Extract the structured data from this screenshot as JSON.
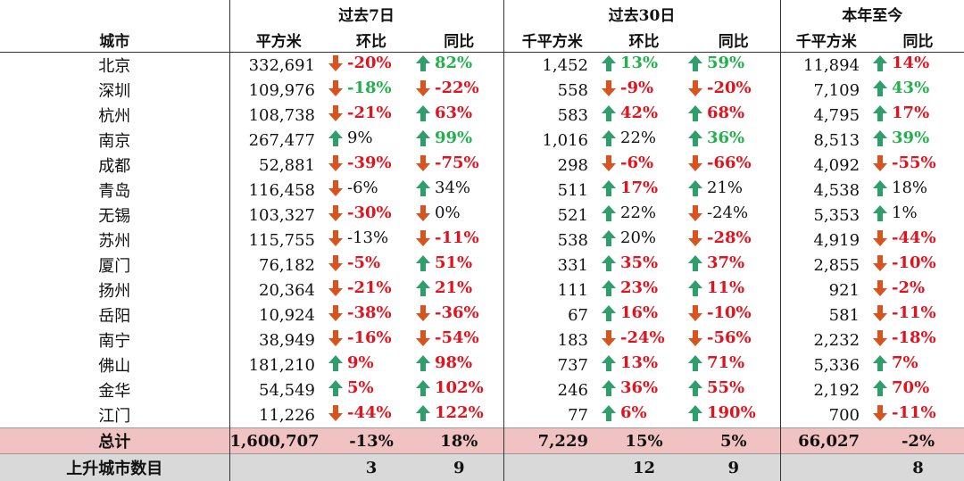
{
  "headers": {
    "group_past7": "过去7日",
    "group_past30": "过去30日",
    "group_ytd": "本年至今",
    "col_city": "城市",
    "col_p7_area": "平方米",
    "col_p7_mom": "环比",
    "col_p7_yoy": "同比",
    "col_p30_area": "千平方米",
    "col_p30_mom": "环比",
    "col_p30_yoy": "同比",
    "col_ytd_area": "千平方米",
    "col_ytd_yoy": "同比"
  },
  "colors": {
    "up": "#22b14c",
    "down": "#e0141e",
    "arrow_up": "#2e9e6b",
    "arrow_down": "#d9531e",
    "total_bg": "#f0c2c2",
    "rise_bg": "#d9d9d9"
  },
  "rows": [
    {
      "city": "北京",
      "p7": "332,691",
      "p7m": {
        "t": "-20%",
        "d": "down",
        "s": "down"
      },
      "p7y": {
        "t": "82%",
        "d": "up",
        "s": "up"
      },
      "p30": "1,452",
      "p30m": {
        "t": "13%",
        "d": "up",
        "s": "up"
      },
      "p30y": {
        "t": "59%",
        "d": "up",
        "s": "up"
      },
      "ytd": "11,894",
      "ytdy": {
        "t": "14%",
        "d": "up",
        "s": "down"
      }
    },
    {
      "city": "深圳",
      "p7": "109,976",
      "p7m": {
        "t": "-18%",
        "d": "down",
        "s": "up"
      },
      "p7y": {
        "t": "-22%",
        "d": "down",
        "s": "down"
      },
      "p30": "558",
      "p30m": {
        "t": "-9%",
        "d": "down",
        "s": "downlite"
      },
      "p30y": {
        "t": "-20%",
        "d": "down",
        "s": "down"
      },
      "ytd": "7,109",
      "ytdy": {
        "t": "43%",
        "d": "up",
        "s": "up"
      }
    },
    {
      "city": "杭州",
      "p7": "108,738",
      "p7m": {
        "t": "-21%",
        "d": "down",
        "s": "down"
      },
      "p7y": {
        "t": "63%",
        "d": "up",
        "s": "down"
      },
      "p30": "583",
      "p30m": {
        "t": "42%",
        "d": "up",
        "s": "down"
      },
      "p30y": {
        "t": "68%",
        "d": "up",
        "s": "down"
      },
      "ytd": "4,795",
      "ytdy": {
        "t": "17%",
        "d": "up",
        "s": "down"
      }
    },
    {
      "city": "南京",
      "p7": "267,477",
      "p7m": {
        "t": "9%",
        "d": "up",
        "s": "plain"
      },
      "p7y": {
        "t": "99%",
        "d": "up",
        "s": "up"
      },
      "p30": "1,016",
      "p30m": {
        "t": "22%",
        "d": "up",
        "s": "plain"
      },
      "p30y": {
        "t": "36%",
        "d": "up",
        "s": "up"
      },
      "ytd": "8,513",
      "ytdy": {
        "t": "39%",
        "d": "up",
        "s": "up"
      }
    },
    {
      "city": "成都",
      "p7": "52,881",
      "p7m": {
        "t": "-39%",
        "d": "down",
        "s": "down"
      },
      "p7y": {
        "t": "-75%",
        "d": "down",
        "s": "down"
      },
      "p30": "298",
      "p30m": {
        "t": "-6%",
        "d": "down",
        "s": "down"
      },
      "p30y": {
        "t": "-66%",
        "d": "down",
        "s": "down"
      },
      "ytd": "4,092",
      "ytdy": {
        "t": "-55%",
        "d": "down",
        "s": "down"
      }
    },
    {
      "city": "青岛",
      "p7": "116,458",
      "p7m": {
        "t": "-6%",
        "d": "down",
        "s": "plain"
      },
      "p7y": {
        "t": "34%",
        "d": "up",
        "s": "plain"
      },
      "p30": "511",
      "p30m": {
        "t": "17%",
        "d": "up",
        "s": "down"
      },
      "p30y": {
        "t": "21%",
        "d": "up",
        "s": "plain"
      },
      "ytd": "4,538",
      "ytdy": {
        "t": "18%",
        "d": "up",
        "s": "plain"
      }
    },
    {
      "city": "无锡",
      "p7": "103,327",
      "p7m": {
        "t": "-30%",
        "d": "down",
        "s": "down"
      },
      "p7y": {
        "t": "0%",
        "d": "down",
        "s": "plain"
      },
      "p30": "521",
      "p30m": {
        "t": "22%",
        "d": "up",
        "s": "plain"
      },
      "p30y": {
        "t": "-24%",
        "d": "down",
        "s": "plain"
      },
      "ytd": "5,353",
      "ytdy": {
        "t": "1%",
        "d": "up",
        "s": "plain"
      }
    },
    {
      "city": "苏州",
      "p7": "115,755",
      "p7m": {
        "t": "-13%",
        "d": "down",
        "s": "plain"
      },
      "p7y": {
        "t": "-11%",
        "d": "down",
        "s": "down"
      },
      "p30": "538",
      "p30m": {
        "t": "20%",
        "d": "up",
        "s": "plain"
      },
      "p30y": {
        "t": "-28%",
        "d": "down",
        "s": "down"
      },
      "ytd": "4,919",
      "ytdy": {
        "t": "-44%",
        "d": "down",
        "s": "down"
      }
    },
    {
      "city": "厦门",
      "p7": "76,182",
      "p7m": {
        "t": "-5%",
        "d": "down",
        "s": "down"
      },
      "p7y": {
        "t": "51%",
        "d": "up",
        "s": "down"
      },
      "p30": "331",
      "p30m": {
        "t": "35%",
        "d": "up",
        "s": "down"
      },
      "p30y": {
        "t": "37%",
        "d": "up",
        "s": "down"
      },
      "ytd": "2,855",
      "ytdy": {
        "t": "-10%",
        "d": "down",
        "s": "down"
      }
    },
    {
      "city": "扬州",
      "p7": "20,364",
      "p7m": {
        "t": "-21%",
        "d": "down",
        "s": "down"
      },
      "p7y": {
        "t": "21%",
        "d": "up",
        "s": "down"
      },
      "p30": "111",
      "p30m": {
        "t": "23%",
        "d": "up",
        "s": "down"
      },
      "p30y": {
        "t": "11%",
        "d": "up",
        "s": "down"
      },
      "ytd": "921",
      "ytdy": {
        "t": "-2%",
        "d": "down",
        "s": "down"
      }
    },
    {
      "city": "岳阳",
      "p7": "10,924",
      "p7m": {
        "t": "-38%",
        "d": "down",
        "s": "down"
      },
      "p7y": {
        "t": "-36%",
        "d": "down",
        "s": "down"
      },
      "p30": "67",
      "p30m": {
        "t": "16%",
        "d": "up",
        "s": "down"
      },
      "p30y": {
        "t": "-10%",
        "d": "down",
        "s": "down"
      },
      "ytd": "581",
      "ytdy": {
        "t": "-11%",
        "d": "down",
        "s": "down"
      }
    },
    {
      "city": "南宁",
      "p7": "38,949",
      "p7m": {
        "t": "-16%",
        "d": "down",
        "s": "down"
      },
      "p7y": {
        "t": "-54%",
        "d": "down",
        "s": "down"
      },
      "p30": "183",
      "p30m": {
        "t": "-24%",
        "d": "down",
        "s": "down"
      },
      "p30y": {
        "t": "-56%",
        "d": "down",
        "s": "down"
      },
      "ytd": "2,232",
      "ytdy": {
        "t": "-18%",
        "d": "down",
        "s": "down"
      }
    },
    {
      "city": "佛山",
      "p7": "181,210",
      "p7m": {
        "t": "9%",
        "d": "up",
        "s": "down"
      },
      "p7y": {
        "t": "98%",
        "d": "up",
        "s": "down"
      },
      "p30": "737",
      "p30m": {
        "t": "13%",
        "d": "up",
        "s": "down"
      },
      "p30y": {
        "t": "71%",
        "d": "up",
        "s": "down"
      },
      "ytd": "5,336",
      "ytdy": {
        "t": "7%",
        "d": "up",
        "s": "down"
      }
    },
    {
      "city": "金华",
      "p7": "54,549",
      "p7m": {
        "t": "5%",
        "d": "up",
        "s": "down"
      },
      "p7y": {
        "t": "102%",
        "d": "up",
        "s": "down"
      },
      "p30": "246",
      "p30m": {
        "t": "36%",
        "d": "up",
        "s": "down"
      },
      "p30y": {
        "t": "55%",
        "d": "up",
        "s": "down"
      },
      "ytd": "2,192",
      "ytdy": {
        "t": "70%",
        "d": "up",
        "s": "down"
      }
    },
    {
      "city": "江门",
      "p7": "11,226",
      "p7m": {
        "t": "-44%",
        "d": "down",
        "s": "down"
      },
      "p7y": {
        "t": "122%",
        "d": "up",
        "s": "down"
      },
      "p30": "77",
      "p30m": {
        "t": "6%",
        "d": "up",
        "s": "down"
      },
      "p30y": {
        "t": "190%",
        "d": "up",
        "s": "down"
      },
      "ytd": "700",
      "ytdy": {
        "t": "-11%",
        "d": "down",
        "s": "down"
      }
    }
  ],
  "total": {
    "label": "总计",
    "p7": "1,600,707",
    "p7m": "-13%",
    "p7y": "18%",
    "p30": "7,229",
    "p30m": "15%",
    "p30y": "5%",
    "ytd": "66,027",
    "ytdy": "-2%"
  },
  "rising": {
    "label": "上升城市数目",
    "p7m": "3",
    "p7y": "9",
    "p30m": "12",
    "p30y": "9",
    "ytdy": "8"
  }
}
